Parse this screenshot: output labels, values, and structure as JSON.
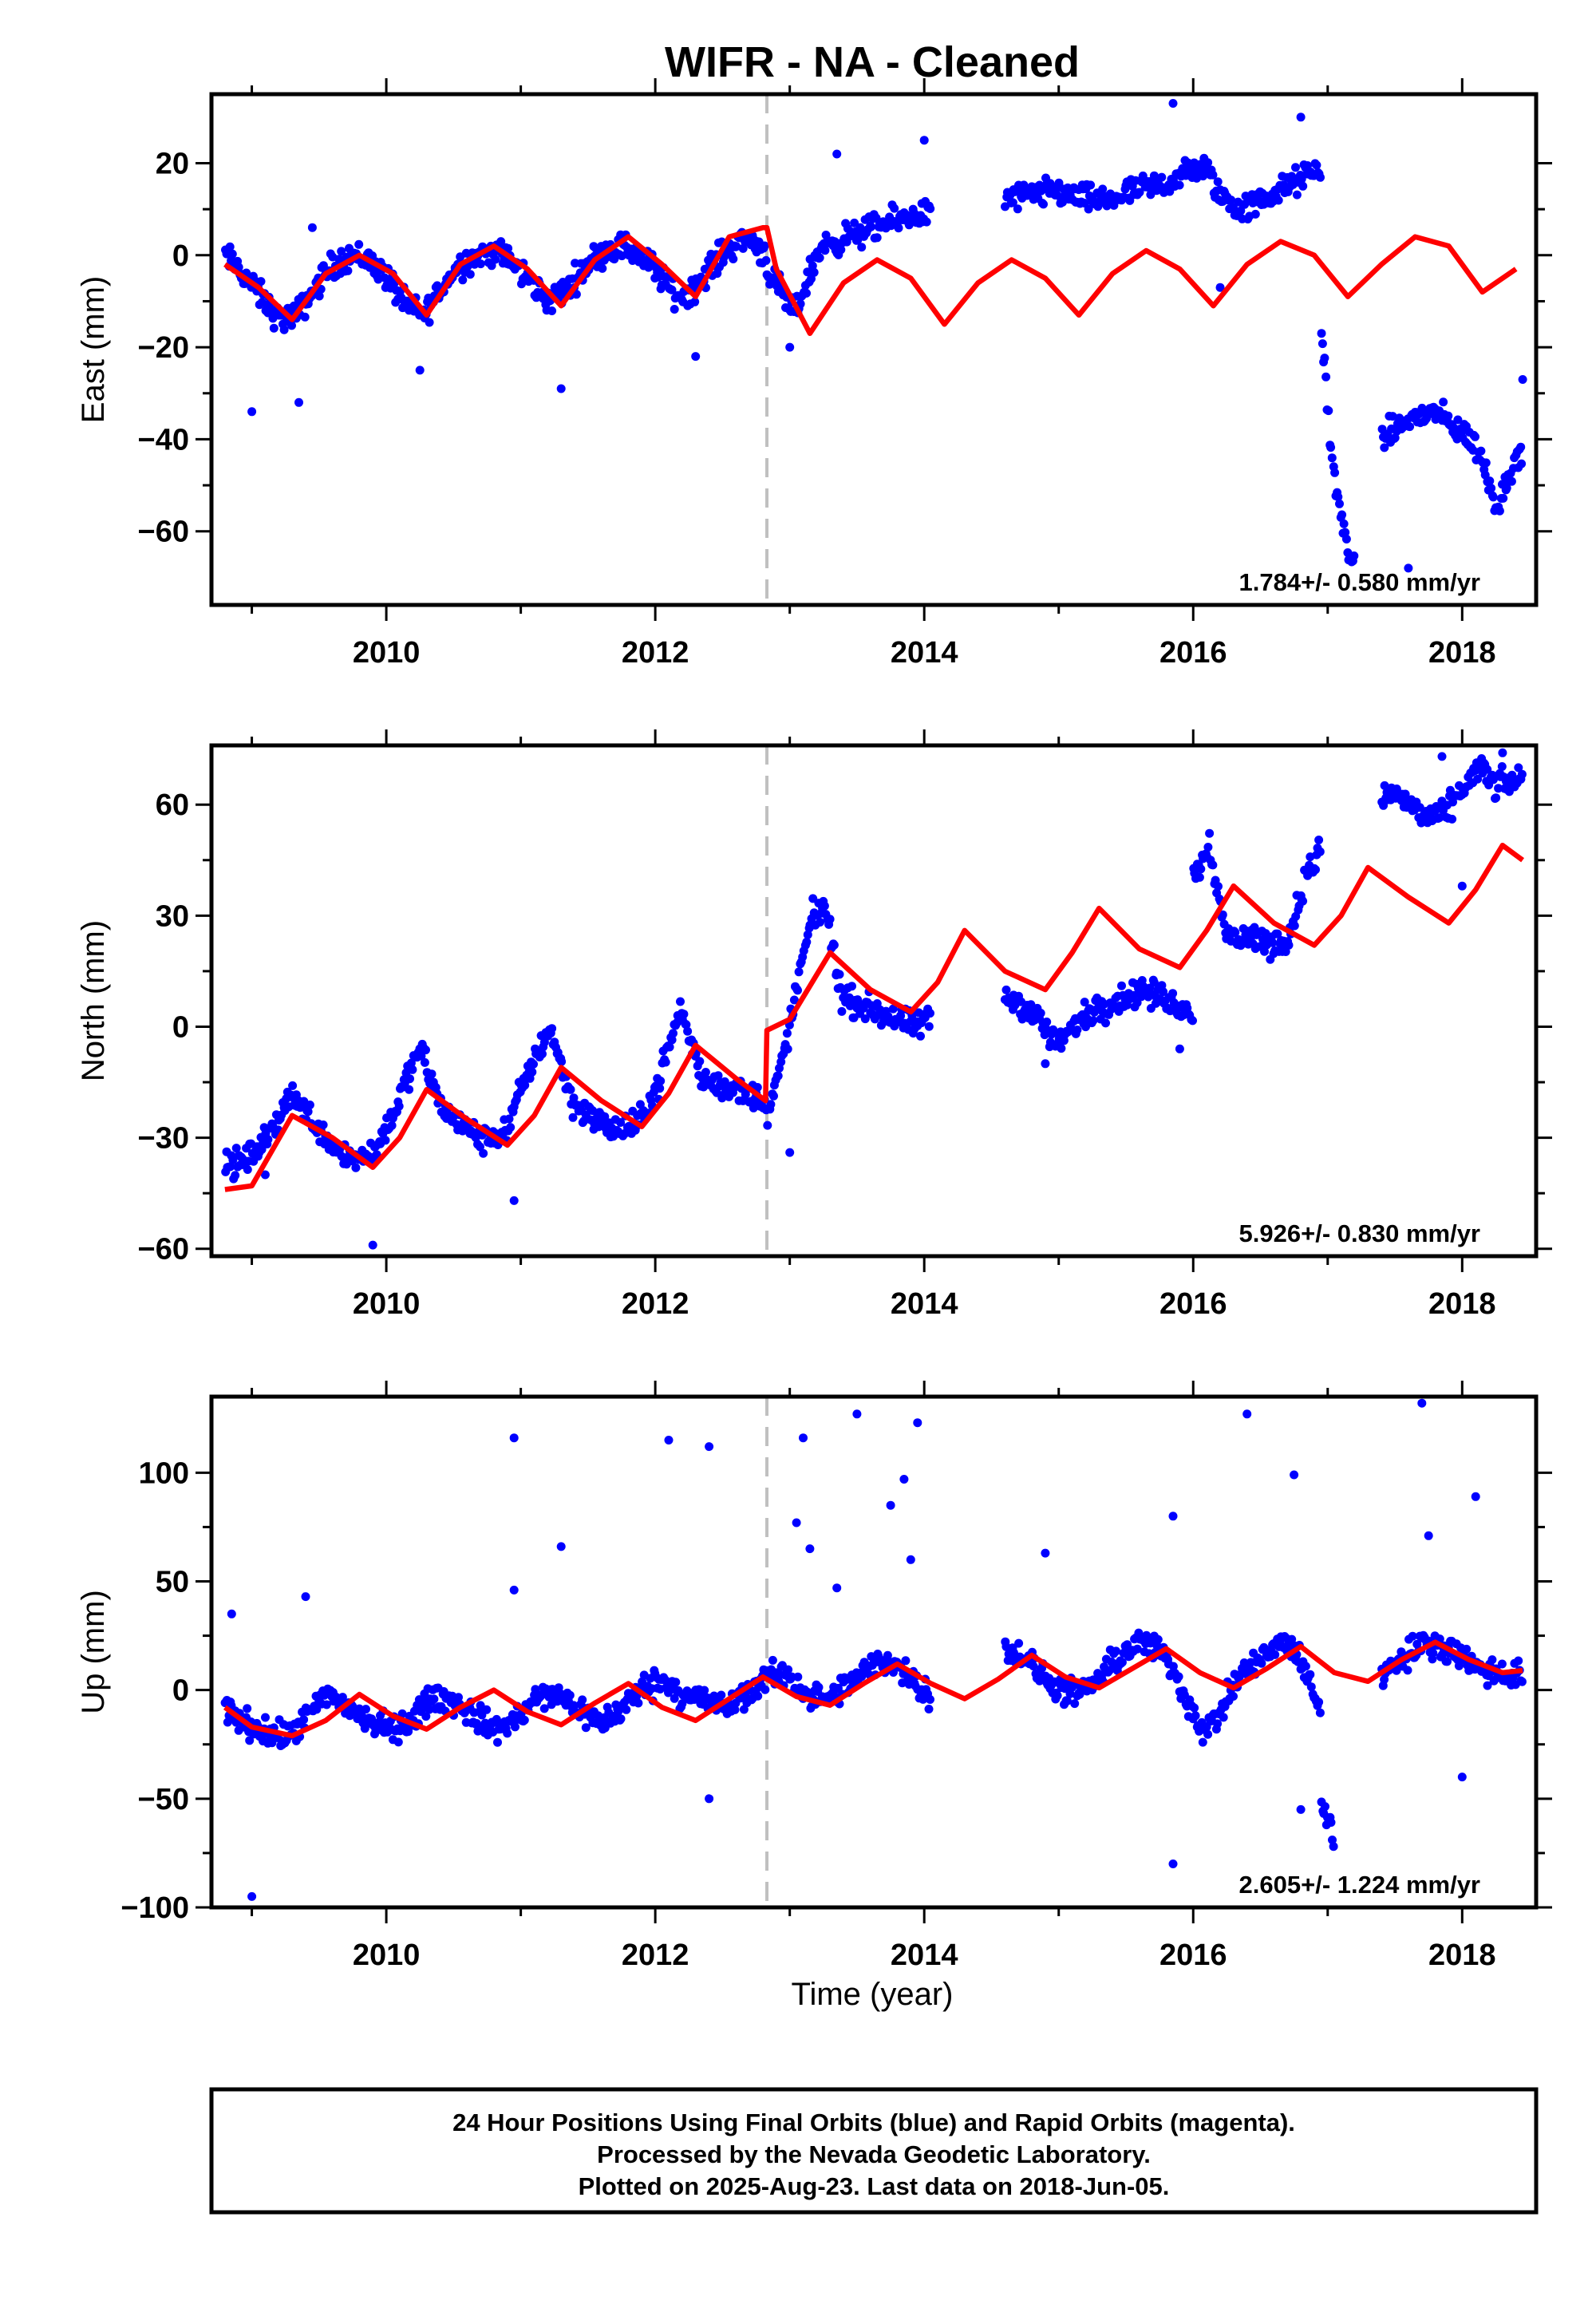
{
  "figure": {
    "title": "WIFR  - NA - Cleaned",
    "xlabel": "Time (year)",
    "footer_lines": [
      "24 Hour Positions Using Final Orbits (blue) and Rapid Orbits (magenta).",
      "Processed by the Nevada Geodetic Laboratory.",
      "Plotted on 2025-Aug-23. Last data on 2018-Jun-05."
    ],
    "colors": {
      "final_orbits": "#0000ff",
      "model_fit": "#ff0000",
      "step_marker": "#c0c0c0",
      "frame": "#000000"
    }
  },
  "chart_data": [
    {
      "type": "scatter",
      "ylabel": "East (mm)",
      "xlim": [
        2008.7,
        2018.55
      ],
      "ylim": [
        -76,
        35
      ],
      "xticks": [
        2010,
        2012,
        2014,
        2016,
        2018
      ],
      "yticks": [
        20,
        0,
        -20,
        -40,
        -60
      ],
      "rate": "1.784+/- 0.580 mm/yr",
      "step_epoch": 2012.83,
      "grid": false,
      "series": [
        {
          "kind": "points",
          "color": "#0000ff",
          "segments": [
            {
              "x0": 2008.8,
              "x1": 2012.83,
              "vals": [
                0,
                -4,
                -9,
                -14,
                -13,
                -7,
                -2,
                0,
                -1,
                -5,
                -11,
                -13,
                -7,
                -2,
                0,
                1,
                -2,
                -6,
                -10,
                -7,
                -2,
                1,
                2,
                0,
                -4,
                -9,
                -7,
                -2,
                2,
                4,
                0
              ]
            },
            {
              "x0": 2012.83,
              "x1": 2014.05,
              "vals": [
                -3,
                -8,
                -13,
                -5,
                2,
                3,
                4,
                5,
                6,
                7,
                8,
                9,
                9
              ]
            },
            {
              "x0": 2014.6,
              "x1": 2016.95,
              "vals": [
                12,
                13,
                13,
                14,
                13,
                12,
                12,
                13,
                14,
                15,
                16,
                18,
                19,
                13,
                10,
                11,
                13,
                15,
                17,
                19
              ]
            },
            {
              "x0": 2016.95,
              "x1": 2017.2,
              "vals": [
                -15,
                -45,
                -60,
                -68
              ]
            },
            {
              "x0": 2017.4,
              "x1": 2018.45,
              "vals": [
                -40,
                -38,
                -36,
                -35,
                -34,
                -36,
                -38,
                -40,
                -46,
                -55,
                -47,
                -42
              ]
            }
          ],
          "outliers": [
            [
              2009.0,
              -34
            ],
            [
              2009.35,
              -32
            ],
            [
              2009.45,
              6
            ],
            [
              2010.25,
              -25
            ],
            [
              2011.3,
              -29
            ],
            [
              2012.3,
              -22
            ],
            [
              2013.35,
              22
            ],
            [
              2013.0,
              -20
            ],
            [
              2014.0,
              25
            ],
            [
              2015.85,
              33
            ],
            [
              2016.2,
              -7
            ],
            [
              2016.8,
              30
            ],
            [
              2017.6,
              -68
            ],
            [
              2018.45,
              -27
            ]
          ]
        },
        {
          "kind": "fit",
          "color": "#ff0000",
          "x": [
            2008.8,
            2009.05,
            2009.3,
            2009.55,
            2009.8,
            2010.05,
            2010.3,
            2010.55,
            2010.8,
            2011.05,
            2011.3,
            2011.55,
            2011.8,
            2012.05,
            2012.3,
            2012.55,
            2012.8,
            2012.83,
            2012.9,
            2013.15,
            2013.4,
            2013.65,
            2013.9,
            2014.15,
            2014.4,
            2014.65,
            2014.9,
            2015.15,
            2015.4,
            2015.65,
            2015.9,
            2016.15,
            2016.4,
            2016.65,
            2016.9,
            2017.15,
            2017.4,
            2017.65,
            2017.9,
            2018.15,
            2018.4
          ],
          "y": [
            -2,
            -7,
            -14,
            -4,
            0,
            -4,
            -13,
            -2,
            2,
            -3,
            -11,
            -1,
            4,
            -2,
            -9,
            4,
            6,
            6,
            -3,
            -17,
            -6,
            -1,
            -5,
            -15,
            -6,
            -1,
            -5,
            -13,
            -4,
            1,
            -3,
            -11,
            -2,
            3,
            0,
            -9,
            -2,
            4,
            2,
            -8,
            -3
          ]
        }
      ]
    },
    {
      "type": "scatter",
      "ylabel": "North (mm)",
      "xlim": [
        2008.7,
        2018.55
      ],
      "ylim": [
        -62,
        76
      ],
      "xticks": [
        2010,
        2012,
        2014,
        2016,
        2018
      ],
      "yticks": [
        60,
        30,
        0,
        -30,
        -60
      ],
      "rate": "5.926+/- 0.830 mm/yr",
      "step_epoch": 2012.83,
      "grid": false,
      "series": [
        {
          "kind": "points",
          "color": "#0000ff",
          "segments": [
            {
              "x0": 2008.8,
              "x1": 2012.83,
              "vals": [
                -38,
                -36,
                -30,
                -18,
                -25,
                -32,
                -36,
                -33,
                -20,
                -6,
                -22,
                -27,
                -31,
                -28,
                -12,
                0,
                -20,
                -25,
                -28,
                -27,
                -15,
                5,
                -14,
                -16,
                -18,
                -20
              ]
            },
            {
              "x0": 2012.83,
              "x1": 2014.05,
              "vals": [
                -25,
                -10,
                10,
                30,
                32,
                8,
                6,
                5,
                3,
                1,
                0,
                2
              ]
            },
            {
              "x0": 2014.6,
              "x1": 2016.0,
              "vals": [
                8,
                6,
                2,
                -5,
                0,
                4,
                6,
                8,
                10,
                8,
                6,
                4
              ]
            },
            {
              "x0": 2016.0,
              "x1": 2016.95,
              "vals": [
                40,
                50,
                25,
                24,
                24,
                22,
                24,
                40,
                48
              ]
            },
            {
              "x0": 2017.4,
              "x1": 2018.45,
              "vals": [
                62,
                63,
                60,
                57,
                56,
                60,
                66,
                70,
                65,
                66,
                67
              ]
            }
          ],
          "outliers": [
            [
              2009.9,
              -59
            ],
            [
              2010.95,
              -47
            ],
            [
              2009.1,
              -40
            ],
            [
              2013.0,
              -34
            ],
            [
              2014.9,
              -10
            ],
            [
              2015.9,
              -6
            ],
            [
              2018.0,
              38
            ],
            [
              2018.3,
              74
            ],
            [
              2017.85,
              73
            ]
          ]
        },
        {
          "kind": "fit",
          "color": "#ff0000",
          "x": [
            2008.8,
            2009.0,
            2009.3,
            2009.6,
            2009.9,
            2010.1,
            2010.3,
            2010.6,
            2010.9,
            2011.1,
            2011.3,
            2011.6,
            2011.9,
            2012.1,
            2012.3,
            2012.6,
            2012.82,
            2012.83,
            2013.0,
            2013.3,
            2013.6,
            2013.9,
            2014.1,
            2014.3,
            2014.6,
            2014.9,
            2015.1,
            2015.3,
            2015.6,
            2015.9,
            2016.1,
            2016.3,
            2016.6,
            2016.9,
            2017.1,
            2017.3,
            2017.6,
            2017.9,
            2018.1,
            2018.3,
            2018.45
          ],
          "y": [
            -44,
            -43,
            -24,
            -30,
            -38,
            -30,
            -17,
            -25,
            -32,
            -24,
            -11,
            -20,
            -27,
            -18,
            -5,
            -14,
            -20,
            -1,
            2,
            20,
            10,
            4,
            12,
            26,
            15,
            10,
            20,
            32,
            21,
            16,
            26,
            38,
            28,
            22,
            30,
            43,
            35,
            28,
            37,
            49,
            45
          ]
        }
      ]
    },
    {
      "type": "scatter",
      "ylabel": "Up (mm)",
      "xlim": [
        2008.7,
        2018.55
      ],
      "ylim": [
        -100,
        135
      ],
      "xticks": [
        2010,
        2012,
        2014,
        2016,
        2018
      ],
      "yticks": [
        100,
        50,
        0,
        -50,
        -100
      ],
      "rate": "2.605+/- 1.224 mm/yr",
      "step_epoch": 2012.83,
      "grid": false,
      "series": [
        {
          "kind": "points",
          "color": "#0000ff",
          "segments": [
            {
              "x0": 2008.8,
              "x1": 2014.05,
              "vals": [
                -8,
                -15,
                -20,
                -22,
                -12,
                -2,
                -8,
                -15,
                -18,
                -14,
                -3,
                -5,
                -12,
                -18,
                -14,
                -4,
                -2,
                -8,
                -15,
                -10,
                0,
                5,
                -2,
                -4,
                -8,
                -3,
                5,
                8,
                -2,
                -5,
                2,
                10,
                14,
                6,
                -2
              ]
            },
            {
              "x0": 2014.6,
              "x1": 2016.95,
              "vals": [
                18,
                16,
                8,
                2,
                -2,
                0,
                8,
                16,
                22,
                20,
                10,
                -5,
                -20,
                -10,
                5,
                12,
                18,
                22,
                10,
                -10
              ]
            },
            {
              "x0": 2016.95,
              "x1": 2017.05,
              "vals": [
                -50,
                -70
              ]
            },
            {
              "x0": 2017.4,
              "x1": 2018.45,
              "vals": [
                8,
                12,
                18,
                20,
                22,
                18,
                14,
                10,
                8,
                6,
                8
              ]
            }
          ],
          "outliers": [
            [
              2008.85,
              35
            ],
            [
              2009.0,
              -95
            ],
            [
              2009.4,
              43
            ],
            [
              2010.95,
              116
            ],
            [
              2010.95,
              46
            ],
            [
              2011.3,
              66
            ],
            [
              2012.1,
              115
            ],
            [
              2012.4,
              112
            ],
            [
              2012.4,
              -50
            ],
            [
              2013.1,
              116
            ],
            [
              2013.05,
              77
            ],
            [
              2013.15,
              65
            ],
            [
              2013.5,
              127
            ],
            [
              2013.75,
              85
            ],
            [
              2013.85,
              97
            ],
            [
              2013.95,
              123
            ],
            [
              2013.9,
              60
            ],
            [
              2013.35,
              47
            ],
            [
              2014.9,
              63
            ],
            [
              2015.85,
              80
            ],
            [
              2015.85,
              -80
            ],
            [
              2016.4,
              127
            ],
            [
              2016.75,
              99
            ],
            [
              2017.7,
              132
            ],
            [
              2017.75,
              71
            ],
            [
              2018.1,
              89
            ],
            [
              2018.0,
              -40
            ],
            [
              2016.8,
              -55
            ]
          ]
        },
        {
          "kind": "fit",
          "color": "#ff0000",
          "x": [
            2008.8,
            2009.0,
            2009.3,
            2009.55,
            2009.8,
            2010.05,
            2010.3,
            2010.55,
            2010.8,
            2011.05,
            2011.3,
            2011.55,
            2011.8,
            2012.05,
            2012.3,
            2012.55,
            2012.8,
            2013.05,
            2013.3,
            2013.55,
            2013.8,
            2014.05,
            2014.3,
            2014.55,
            2014.8,
            2015.05,
            2015.3,
            2015.55,
            2015.8,
            2016.05,
            2016.3,
            2016.55,
            2016.8,
            2017.05,
            2017.3,
            2017.55,
            2017.8,
            2018.05,
            2018.3,
            2018.45
          ],
          "y": [
            -8,
            -17,
            -21,
            -14,
            -2,
            -12,
            -18,
            -8,
            0,
            -10,
            -16,
            -6,
            3,
            -8,
            -14,
            -4,
            6,
            -3,
            -7,
            3,
            12,
            3,
            -4,
            5,
            16,
            6,
            1,
            10,
            19,
            8,
            1,
            10,
            20,
            8,
            4,
            14,
            22,
            14,
            8,
            9
          ]
        }
      ]
    }
  ]
}
